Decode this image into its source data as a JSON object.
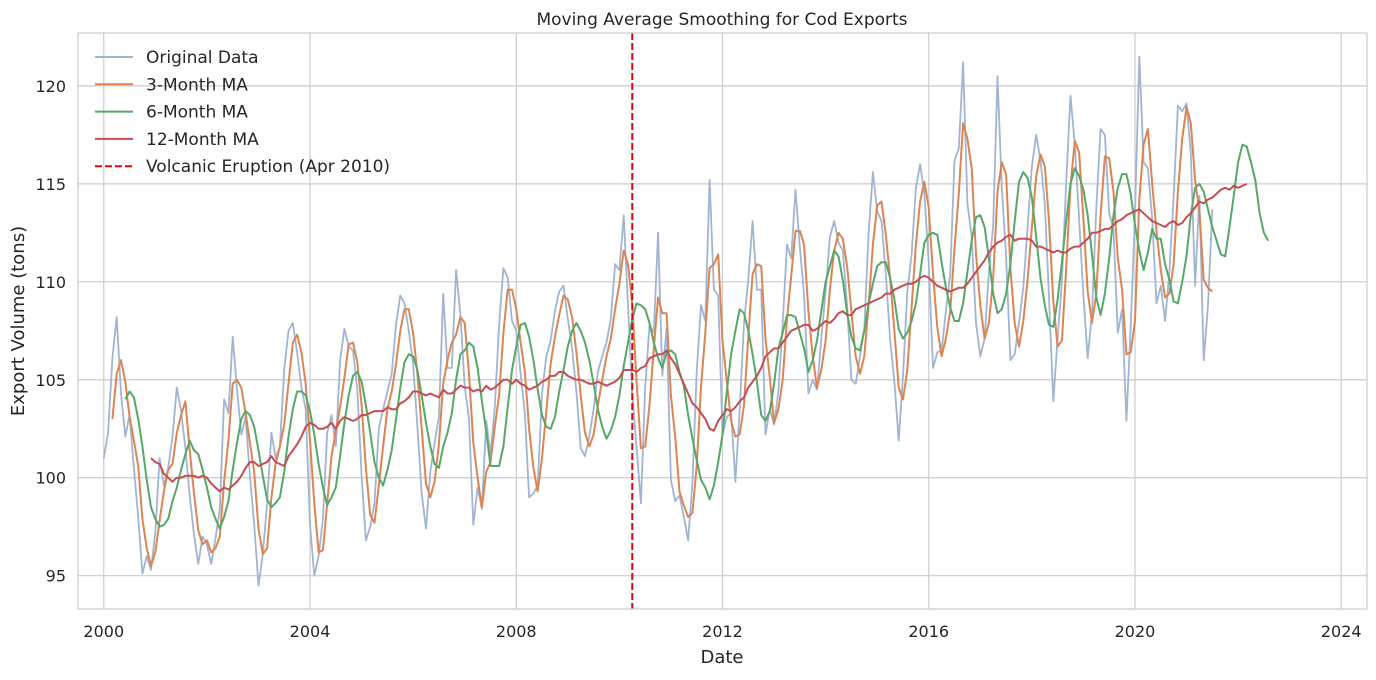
{
  "chart_data": {
    "type": "line",
    "title": "Moving Average Smoothing for Cod Exports",
    "xlabel": "Date",
    "ylabel": "Export Volume (tons)",
    "xlim": [
      "1999-07-01",
      "2024-07-01"
    ],
    "ylim": [
      93.3,
      122.7
    ],
    "x_ticks": [
      "2000",
      "2004",
      "2008",
      "2012",
      "2016",
      "2020",
      "2024"
    ],
    "y_ticks": [
      95,
      100,
      105,
      110,
      115,
      120
    ],
    "grid": true,
    "legend_position": "top-left",
    "x_start": "2000-01",
    "x_frequency": "monthly",
    "series": [
      {
        "name": "Original Data",
        "color": "#a2b4d4",
        "values": [
          101.0,
          102.3,
          106.1,
          108.2,
          104.3,
          102.1,
          103.2,
          100.5,
          98.0,
          95.1,
          96.0,
          95.3,
          97.2,
          101.0,
          99.6,
          100.5,
          102.1,
          104.6,
          103.4,
          101.5,
          99.1,
          97.1,
          95.6,
          97.0,
          96.6,
          95.6,
          96.9,
          98.4,
          104.0,
          103.3,
          107.2,
          104.5,
          102.2,
          103.1,
          100.1,
          97.6,
          94.5,
          96.1,
          98.7,
          102.3,
          101.0,
          101.6,
          105.5,
          107.5,
          107.9,
          106.4,
          104.6,
          103.5,
          97.6,
          95.0,
          96.0,
          97.9,
          102.3,
          103.2,
          101.6,
          106.0,
          107.6,
          106.7,
          106.5,
          104.5,
          100.1,
          96.8,
          97.5,
          98.7,
          102.5,
          103.5,
          104.4,
          105.3,
          107.8,
          109.3,
          108.9,
          107.5,
          105.8,
          102.6,
          99.2,
          97.4,
          100.3,
          101.8,
          103.1,
          109.4,
          105.6,
          105.6,
          110.6,
          108.3,
          104.7,
          103.0,
          97.6,
          99.5,
          98.4,
          102.9,
          101.2,
          103.6,
          107.8,
          110.7,
          110.2,
          108.0,
          107.5,
          105.3,
          103.3,
          99.0,
          99.2,
          99.6,
          104.3,
          106.2,
          107.0,
          108.5,
          109.5,
          109.8,
          108.1,
          106.6,
          104.4,
          101.5,
          101.1,
          102.1,
          103.5,
          105.4,
          106.2,
          106.9,
          108.1,
          110.9,
          110.6,
          113.4,
          108.8,
          104.3,
          101.5,
          98.7,
          104.6,
          107.8,
          107.4,
          112.5,
          105.2,
          107.6,
          99.9,
          98.8,
          99.1,
          98.0,
          96.8,
          99.7,
          105.4,
          108.8,
          108.0,
          115.2,
          109.6,
          109.3,
          102.2,
          103.1,
          103.3,
          99.8,
          103.5,
          107.9,
          110.1,
          113.1,
          109.6,
          109.6,
          102.2,
          103.5,
          102.7,
          104.4,
          107.9,
          111.9,
          111.2,
          114.7,
          111.8,
          109.3,
          104.3,
          105.0,
          104.5,
          107.1,
          109.5,
          112.3,
          113.1,
          112.0,
          111.6,
          108.8,
          105.0,
          104.8,
          106.2,
          107.6,
          112.5,
          115.6,
          113.6,
          113.1,
          110.4,
          107.1,
          104.9,
          101.9,
          105.2,
          109.5,
          111.4,
          114.8,
          116.0,
          114.5,
          111.0,
          105.6,
          106.4,
          106.5,
          108.5,
          110.4,
          116.2,
          116.8,
          121.2,
          114.0,
          112.3,
          107.9,
          106.2,
          107.1,
          110.5,
          112.9,
          120.5,
          114.8,
          111.3,
          106.0,
          106.3,
          107.9,
          109.7,
          112.8,
          115.9,
          117.5,
          116.2,
          114.0,
          109.2,
          103.9,
          107.1,
          110.0,
          115.1,
          119.5,
          117.0,
          113.2,
          109.3,
          106.1,
          108.4,
          113.8,
          117.8,
          117.5,
          113.5,
          112.7,
          107.4,
          108.6,
          102.9,
          107.7,
          113.5,
          121.5,
          116.1,
          115.8,
          113.2,
          108.9,
          109.8,
          108.0,
          110.5,
          114.3,
          119.0,
          118.7,
          119.1,
          116.6,
          109.8,
          114.4,
          106.0,
          108.8,
          113.7
        ]
      },
      {
        "name": "3-Month MA",
        "color": "#dd8452",
        "values": [
          null,
          null,
          103.0,
          105.3,
          106.0,
          104.9,
          103.1,
          101.9,
          100.6,
          97.9,
          96.4,
          95.5,
          96.2,
          97.8,
          99.3,
          100.4,
          100.7,
          102.3,
          103.2,
          103.9,
          101.4,
          99.2,
          97.3,
          96.6,
          96.8,
          96.2,
          96.4,
          97.0,
          99.8,
          101.9,
          104.8,
          105.0,
          104.6,
          103.3,
          101.8,
          100.3,
          97.4,
          96.1,
          96.4,
          99.0,
          100.7,
          101.6,
          102.7,
          104.8,
          106.9,
          107.3,
          106.4,
          104.8,
          101.9,
          98.7,
          96.2,
          96.3,
          98.7,
          101.1,
          102.4,
          103.6,
          105.1,
          106.8,
          106.9,
          105.9,
          103.7,
          100.5,
          98.1,
          97.7,
          99.6,
          101.6,
          103.5,
          104.4,
          105.8,
          107.5,
          108.6,
          108.6,
          107.4,
          105.3,
          102.5,
          99.7,
          99.0,
          99.8,
          101.7,
          104.8,
          106.0,
          106.9,
          107.3,
          108.2,
          107.9,
          105.3,
          101.8,
          100.0,
          98.5,
          100.3,
          100.8,
          102.6,
          104.2,
          107.4,
          109.6,
          109.6,
          108.6,
          106.9,
          105.4,
          102.5,
          100.5,
          99.3,
          101.0,
          103.4,
          105.8,
          107.2,
          108.3,
          109.3,
          109.1,
          108.2,
          106.4,
          104.2,
          102.3,
          101.6,
          102.2,
          103.7,
          105.0,
          106.2,
          107.1,
          108.6,
          109.9,
          111.6,
          110.9,
          108.8,
          104.9,
          101.5,
          101.6,
          103.7,
          106.6,
          109.2,
          108.4,
          108.4,
          104.2,
          102.1,
          99.3,
          98.6,
          98.0,
          98.2,
          100.6,
          104.6,
          107.4,
          110.7,
          110.9,
          111.4,
          107.0,
          104.9,
          102.9,
          102.1,
          102.2,
          103.7,
          107.2,
          110.4,
          110.9,
          110.8,
          107.1,
          105.1,
          102.8,
          103.5,
          105.0,
          108.1,
          110.3,
          112.6,
          112.6,
          111.9,
          108.5,
          106.2,
          104.6,
          105.5,
          107.0,
          109.6,
          111.6,
          112.5,
          112.2,
          110.8,
          108.5,
          106.2,
          105.3,
          106.2,
          108.8,
          111.9,
          113.9,
          114.1,
          112.4,
          110.2,
          107.5,
          104.6,
          104.0,
          105.5,
          108.7,
          111.9,
          114.1,
          115.1,
          113.8,
          110.4,
          107.7,
          106.2,
          107.1,
          108.5,
          111.7,
          114.5,
          118.1,
          117.3,
          115.8,
          111.4,
          108.8,
          107.1,
          107.9,
          110.2,
          114.6,
          116.1,
          115.5,
          110.7,
          107.9,
          106.7,
          108.0,
          110.1,
          112.8,
          115.4,
          116.5,
          115.9,
          113.1,
          109.0,
          106.7,
          107.0,
          110.7,
          114.9,
          117.2,
          116.6,
          113.2,
          109.5,
          107.9,
          109.4,
          113.4,
          116.4,
          116.3,
          114.6,
          111.2,
          109.6,
          106.3,
          106.4,
          108.0,
          114.2,
          117.0,
          117.8,
          115.0,
          112.6,
          110.6,
          109.2,
          109.4,
          110.9,
          114.6,
          117.3,
          118.9,
          118.1,
          115.2,
          113.6,
          110.1,
          109.7,
          109.5
        ]
      },
      {
        "name": "6-Month MA",
        "color": "#55a868",
        "values": [
          null,
          null,
          null,
          null,
          null,
          104.0,
          104.4,
          104.1,
          103.0,
          101.6,
          99.9,
          98.5,
          97.9,
          97.5,
          97.6,
          97.9,
          98.8,
          99.5,
          100.4,
          101.2,
          101.9,
          101.4,
          101.2,
          100.4,
          99.5,
          98.5,
          97.9,
          97.4,
          98.0,
          98.8,
          100.4,
          101.8,
          103.0,
          103.4,
          103.2,
          102.6,
          101.4,
          100.1,
          98.9,
          98.5,
          98.7,
          99.0,
          100.3,
          102.1,
          103.5,
          104.4,
          104.4,
          104.2,
          103.4,
          102.2,
          100.7,
          99.5,
          98.6,
          99.0,
          99.5,
          101.1,
          102.8,
          104.2,
          105.2,
          105.4,
          104.9,
          103.7,
          102.3,
          100.8,
          100.0,
          99.6,
          100.4,
          101.4,
          103.0,
          104.6,
          105.9,
          106.3,
          106.2,
          105.5,
          104.2,
          102.8,
          101.6,
          100.7,
          100.5,
          101.6,
          102.3,
          103.3,
          105.0,
          106.3,
          106.5,
          106.9,
          106.7,
          105.6,
          103.9,
          102.4,
          100.6,
          100.6,
          100.6,
          101.6,
          103.6,
          105.5,
          106.7,
          107.8,
          107.9,
          107.2,
          106.0,
          104.5,
          103.2,
          102.6,
          102.5,
          103.1,
          104.4,
          105.5,
          106.7,
          107.5,
          107.9,
          107.5,
          106.9,
          106.0,
          104.8,
          103.5,
          102.6,
          102.0,
          102.4,
          103.1,
          104.2,
          105.7,
          106.9,
          108.1,
          108.9,
          108.8,
          108.6,
          107.9,
          106.9,
          106.1,
          105.6,
          106.4,
          106.5,
          106.3,
          105.4,
          104.7,
          103.2,
          102.0,
          100.9,
          99.9,
          99.5,
          98.9,
          99.6,
          100.8,
          102.2,
          104.4,
          106.3,
          107.5,
          108.6,
          108.4,
          107.5,
          106.3,
          104.9,
          103.2,
          102.9,
          103.4,
          104.8,
          106.6,
          107.4,
          108.3,
          108.3,
          108.2,
          107.4,
          106.6,
          105.4,
          106.0,
          107.0,
          108.5,
          110.0,
          110.8,
          111.6,
          111.3,
          110.1,
          108.4,
          107.2,
          106.6,
          106.5,
          107.5,
          108.9,
          109.9,
          110.8,
          111.0,
          111.0,
          110.2,
          109.1,
          107.6,
          107.1,
          107.4,
          108.0,
          108.9,
          110.4,
          112.0,
          112.4,
          112.5,
          112.4,
          111.0,
          109.7,
          108.7,
          108.0,
          108.0,
          108.9,
          110.5,
          112.1,
          113.3,
          113.4,
          112.8,
          111.2,
          109.4,
          108.4,
          108.6,
          109.4,
          110.9,
          113.1,
          115.1,
          115.6,
          115.3,
          114.3,
          112.3,
          110.2,
          108.8,
          107.8,
          107.7,
          109.1,
          111.0,
          113.1,
          115.0,
          115.8,
          115.4,
          114.7,
          113.4,
          111.4,
          109.2,
          108.3,
          109.4,
          111.2,
          113.4,
          114.8,
          115.5,
          115.5,
          114.5,
          112.9,
          111.6,
          110.6,
          111.5,
          112.7,
          112.2,
          112.2,
          110.9,
          110.1,
          109.0,
          108.9,
          110.0,
          111.3,
          113.4,
          114.8,
          115.0,
          114.6,
          113.7,
          112.8,
          112.1,
          111.4,
          111.3,
          112.8,
          114.4,
          116.1,
          117.0,
          116.9,
          116.1,
          115.2,
          113.5,
          112.5,
          112.1
        ]
      },
      {
        "name": "12-Month MA",
        "color": "#c44e52",
        "values": [
          null,
          null,
          null,
          null,
          null,
          null,
          null,
          null,
          null,
          null,
          null,
          101.0,
          100.8,
          100.7,
          100.2,
          100.0,
          99.8,
          100.0,
          100.0,
          100.1,
          100.1,
          100.1,
          100.0,
          100.1,
          100.0,
          99.7,
          99.5,
          99.3,
          99.5,
          99.4,
          99.6,
          99.8,
          100.1,
          100.5,
          100.8,
          100.8,
          100.6,
          100.7,
          100.8,
          101.1,
          100.8,
          100.7,
          100.6,
          101.1,
          101.4,
          101.7,
          102.1,
          102.6,
          102.8,
          102.7,
          102.5,
          102.5,
          102.6,
          102.8,
          102.5,
          102.9,
          103.1,
          103.0,
          102.9,
          103.0,
          103.2,
          103.2,
          103.3,
          103.4,
          103.4,
          103.4,
          103.6,
          103.5,
          103.5,
          103.8,
          103.9,
          104.1,
          104.4,
          104.4,
          104.3,
          104.2,
          104.3,
          104.2,
          104.1,
          104.5,
          104.3,
          104.3,
          104.5,
          104.7,
          104.6,
          104.6,
          104.4,
          104.5,
          104.4,
          104.7,
          104.5,
          104.6,
          104.8,
          105.0,
          105.0,
          104.8,
          105.0,
          104.8,
          104.7,
          104.5,
          104.6,
          104.7,
          104.9,
          105.0,
          105.2,
          105.2,
          105.4,
          105.4,
          105.2,
          105.1,
          105.0,
          105.0,
          104.9,
          104.8,
          104.8,
          104.9,
          104.8,
          104.7,
          104.8,
          104.9,
          105.1,
          105.5,
          105.5,
          105.5,
          105.4,
          105.6,
          105.7,
          106.1,
          106.2,
          106.3,
          106.3,
          106.5,
          106.1,
          105.8,
          105.3,
          104.8,
          104.3,
          103.8,
          103.6,
          103.3,
          103.0,
          102.5,
          102.4,
          102.9,
          103.2,
          103.5,
          103.4,
          103.6,
          103.9,
          104.1,
          104.6,
          104.9,
          105.2,
          105.6,
          106.2,
          106.4,
          106.6,
          106.6,
          106.9,
          107.2,
          107.5,
          107.6,
          107.7,
          107.8,
          107.8,
          107.5,
          107.6,
          107.8,
          108.0,
          107.9,
          108.1,
          108.4,
          108.5,
          108.3,
          108.3,
          108.6,
          108.7,
          108.8,
          108.9,
          109.0,
          109.1,
          109.2,
          109.4,
          109.4,
          109.6,
          109.7,
          109.8,
          109.9,
          109.9,
          110.0,
          110.2,
          110.3,
          110.2,
          110.0,
          109.8,
          109.7,
          109.6,
          109.5,
          109.6,
          109.7,
          109.7,
          109.9,
          110.2,
          110.5,
          110.8,
          111.1,
          111.5,
          111.8,
          112.0,
          112.1,
          112.3,
          112.4,
          112.1,
          112.2,
          112.2,
          112.2,
          112.1,
          111.8,
          111.8,
          111.7,
          111.6,
          111.5,
          111.6,
          111.5,
          111.5,
          111.7,
          111.8,
          111.8,
          112.0,
          112.2,
          112.5,
          112.5,
          112.6,
          112.7,
          112.7,
          112.9,
          113.1,
          113.2,
          113.4,
          113.5,
          113.6,
          113.7,
          113.5,
          113.3,
          113.1,
          113.0,
          112.9,
          112.8,
          113.0,
          113.1,
          112.9,
          113.0,
          113.3,
          113.5,
          113.8,
          114.1,
          114.0,
          114.2,
          114.3,
          114.5,
          114.7,
          114.8,
          114.7,
          114.9,
          114.8,
          114.9,
          115.0
        ]
      }
    ],
    "events": [
      {
        "label": "Volcanic Eruption (Apr 2010)",
        "date": "2010-04",
        "color": "#e8000b",
        "style": "dashed"
      }
    ]
  }
}
